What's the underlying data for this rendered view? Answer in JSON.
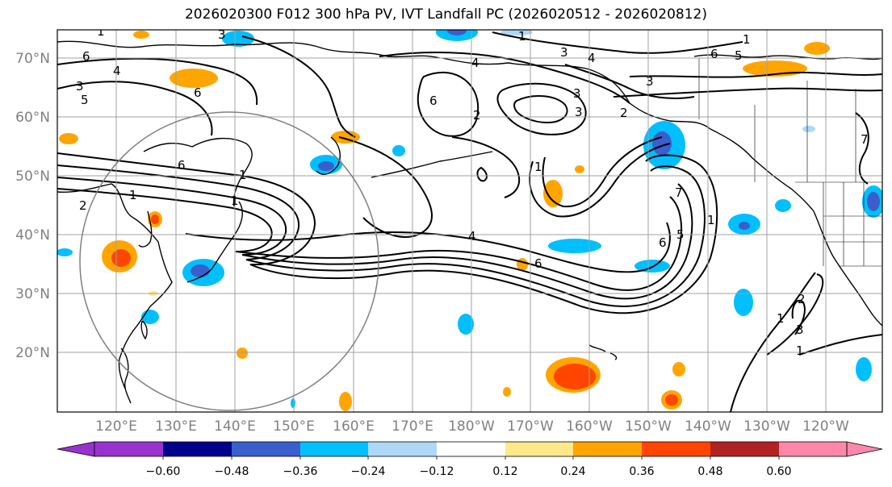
{
  "title": "2026020300 F012 300 hPa PV, IVT Landfall PC (2026020512 - 2026020812)",
  "lat_labels": [
    "70°N",
    "60°N",
    "50°N",
    "40°N",
    "30°N",
    "20°N"
  ],
  "lon_labels": [
    "120°E",
    "130°E",
    "140°E",
    "150°E",
    "160°E",
    "170°E",
    "180°W",
    "170°W",
    "160°W",
    "150°W",
    "140°W",
    "130°W",
    "120°W"
  ],
  "colorbar": {
    "ticks": [
      "−0.60",
      "−0.48",
      "−0.36",
      "−0.24",
      "−0.12",
      "0.12",
      "0.24",
      "0.36",
      "0.48",
      "0.60"
    ],
    "colors": [
      "#9932cc",
      "#00008b",
      "#3a5fcd",
      "#00bfff",
      "#add8f7",
      "#ffffff",
      "#ffe88a",
      "#ffa500",
      "#ff4500",
      "#b22222",
      "#ff88aa"
    ]
  },
  "contour_labels": [
    "1",
    "6",
    "4",
    "3",
    "5",
    "6",
    "2",
    "1",
    "6",
    "1",
    "3",
    "4",
    "1",
    "4",
    "3",
    "2",
    "3",
    "3",
    "6",
    "2",
    "6",
    "3",
    "1",
    "1",
    "6",
    "7",
    "5",
    "6",
    "5",
    "1",
    "2",
    "1",
    "3",
    "7",
    "1",
    "1",
    "4"
  ],
  "colors": {
    "pos_light": "#ffe88a",
    "pos_mid": "#ffa500",
    "pos_strong": "#ff4500",
    "neg_light": "#add8f7",
    "neg_mid": "#00bfff",
    "neg_strong": "#3a5fcd",
    "grid": "#a0a0a0",
    "circle": "#808080"
  }
}
